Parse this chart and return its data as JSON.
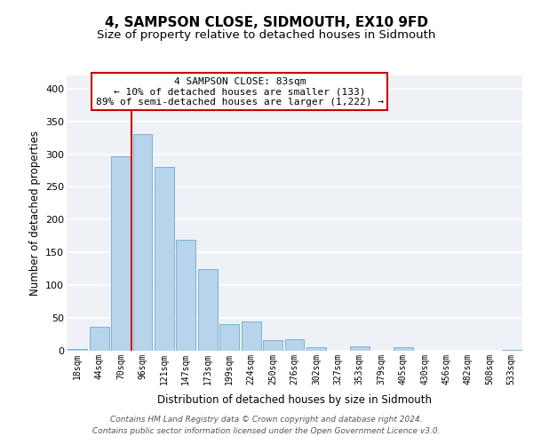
{
  "title": "4, SAMPSON CLOSE, SIDMOUTH, EX10 9FD",
  "subtitle": "Size of property relative to detached houses in Sidmouth",
  "xlabel": "Distribution of detached houses by size in Sidmouth",
  "ylabel": "Number of detached properties",
  "bar_labels": [
    "18sqm",
    "44sqm",
    "70sqm",
    "96sqm",
    "121sqm",
    "147sqm",
    "173sqm",
    "199sqm",
    "224sqm",
    "250sqm",
    "276sqm",
    "302sqm",
    "327sqm",
    "353sqm",
    "379sqm",
    "405sqm",
    "430sqm",
    "456sqm",
    "482sqm",
    "508sqm",
    "533sqm"
  ],
  "bar_values": [
    3,
    37,
    297,
    330,
    280,
    169,
    124,
    41,
    45,
    16,
    17,
    5,
    0,
    7,
    0,
    6,
    0,
    0,
    0,
    0,
    2
  ],
  "bar_color": "#b8d4ea",
  "bar_edge_color": "#6aaad4",
  "vline_color": "#cc0000",
  "ylim": [
    0,
    420
  ],
  "yticks": [
    0,
    50,
    100,
    150,
    200,
    250,
    300,
    350,
    400
  ],
  "annotation_title": "4 SAMPSON CLOSE: 83sqm",
  "annotation_line1": "← 10% of detached houses are smaller (133)",
  "annotation_line2": "89% of semi-detached houses are larger (1,222) →",
  "annotation_box_color": "#ffffff",
  "annotation_box_edge": "#cc0000",
  "footer_line1": "Contains HM Land Registry data © Crown copyright and database right 2024.",
  "footer_line2": "Contains public sector information licensed under the Open Government Licence v3.0.",
  "bg_color": "#eef2f7",
  "grid_color": "#ffffff",
  "title_fontsize": 11,
  "subtitle_fontsize": 9.5,
  "xlabel_fontsize": 8.5,
  "ylabel_fontsize": 8.5,
  "tick_fontsize": 7,
  "footer_fontsize": 6.5,
  "annotation_fontsize": 8
}
